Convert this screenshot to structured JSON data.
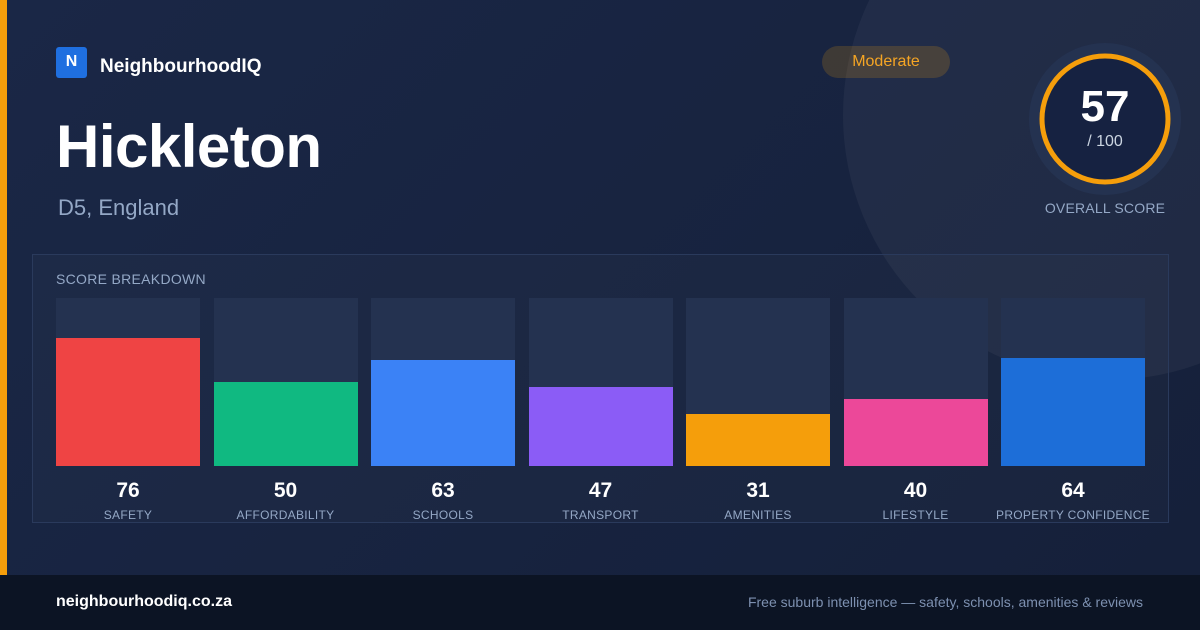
{
  "brand": {
    "logo_letter": "N",
    "name": "NeighbourhoodIQ"
  },
  "badge": {
    "label": "Moderate",
    "color": "#f59e0b"
  },
  "place": {
    "name": "Hickleton",
    "region": "D5, England"
  },
  "overall": {
    "score": "57",
    "max_label": "/ 100",
    "max": 100,
    "label": "OVERALL SCORE",
    "ring_color": "#f59e0b"
  },
  "breakdown": {
    "title": "SCORE BREAKDOWN",
    "items": [
      {
        "value": "76",
        "label": "SAFETY",
        "color": "#ef4444"
      },
      {
        "value": "50",
        "label": "AFFORDABILITY",
        "color": "#10b981"
      },
      {
        "value": "63",
        "label": "SCHOOLS",
        "color": "#3b82f6"
      },
      {
        "value": "47",
        "label": "TRANSPORT",
        "color": "#8b5cf6"
      },
      {
        "value": "31",
        "label": "AMENITIES",
        "color": "#f59e0b"
      },
      {
        "value": "40",
        "label": "LIFESTYLE",
        "color": "#ec4899"
      },
      {
        "value": "64",
        "label": "PROPERTY CONFIDENCE",
        "color": "#1d6ed8"
      }
    ]
  },
  "chart_data": {
    "type": "bar",
    "categories": [
      "SAFETY",
      "AFFORDABILITY",
      "SCHOOLS",
      "TRANSPORT",
      "AMENITIES",
      "LIFESTYLE",
      "PROPERTY CONFIDENCE"
    ],
    "values": [
      76,
      50,
      63,
      47,
      31,
      40,
      64
    ],
    "title": "SCORE BREAKDOWN",
    "ylim": [
      0,
      100
    ]
  },
  "footer": {
    "url": "neighbourhoodiq.co.za",
    "tagline": "Free suburb intelligence — safety, schools, amenities & reviews"
  }
}
